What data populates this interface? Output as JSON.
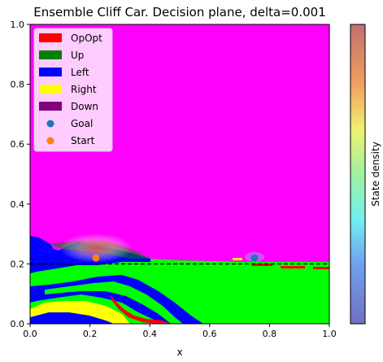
{
  "chart_data": {
    "type": "heatmap",
    "title": "Ensemble Cliff Car. Decision plane, delta=0.001",
    "xlabel": "x",
    "ylabel": "",
    "xlim": [
      0,
      1
    ],
    "ylim": [
      0,
      1
    ],
    "x_ticks": [
      "0.0",
      "0.2",
      "0.4",
      "0.6",
      "0.8",
      "1.0"
    ],
    "y_ticks": [
      "0.0",
      "0.2",
      "0.4",
      "0.6",
      "0.8",
      "1.0"
    ],
    "background_class": "OpOpt-magenta",
    "cliff_line_y": 0.2,
    "legend_position": "upper-left",
    "legend": [
      {
        "label": "OpOpt",
        "color": "#ff0000",
        "kind": "patch"
      },
      {
        "label": "Up",
        "color": "#008000",
        "kind": "patch"
      },
      {
        "label": "Left",
        "color": "#0000ff",
        "kind": "patch"
      },
      {
        "label": "Right",
        "color": "#ffff00",
        "kind": "patch"
      },
      {
        "label": "Down",
        "color": "#800080",
        "kind": "patch"
      },
      {
        "label": "Goal",
        "color": "#1f77b4",
        "kind": "marker"
      },
      {
        "label": "Start",
        "color": "#ff7f0e",
        "kind": "marker"
      }
    ],
    "points": {
      "goal": {
        "x": 0.75,
        "y": 0.22
      },
      "start": {
        "x": 0.22,
        "y": 0.22
      }
    },
    "colorbar": {
      "label": "State density",
      "colormap": "jet-alpha"
    },
    "region_colors": {
      "magenta": "#ff00ff",
      "green": "#00ff00",
      "blue": "#0000ff",
      "yellow": "#ffff00",
      "red": "#ff0000",
      "dashed_line": "#000000"
    }
  }
}
